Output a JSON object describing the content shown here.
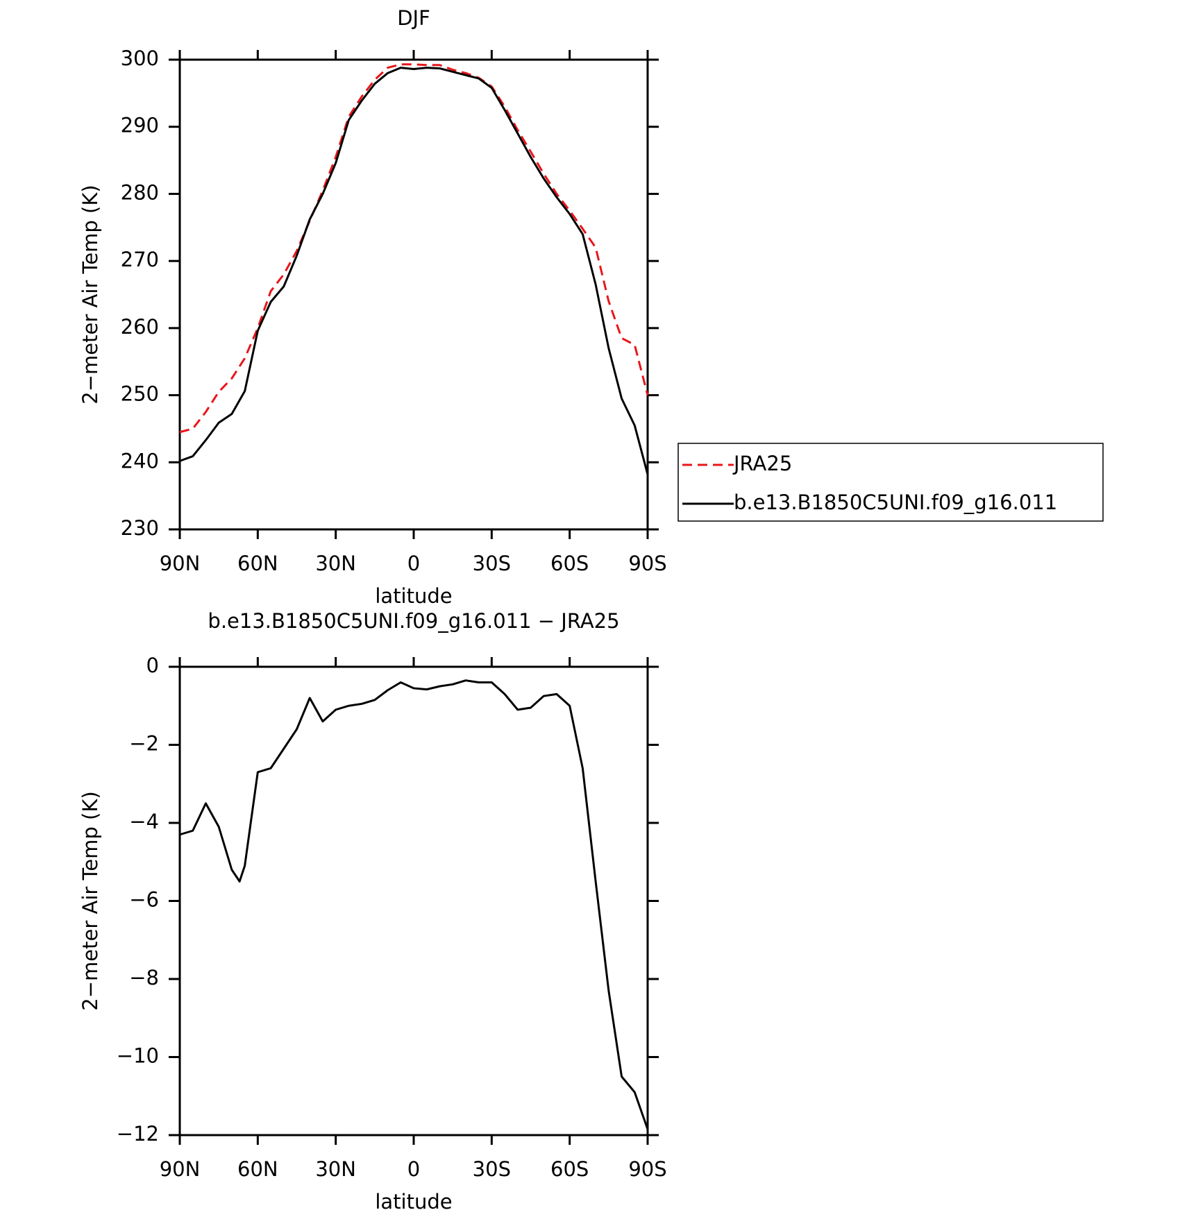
{
  "chart_data": [
    {
      "type": "line",
      "title": "DJF",
      "x_label": "latitude",
      "y_label": "2−meter Air Temp (K)",
      "x": [
        90,
        85,
        80,
        75,
        70,
        65,
        60,
        55,
        50,
        45,
        40,
        35,
        30,
        25,
        20,
        15,
        10,
        5,
        0,
        -5,
        -10,
        -15,
        -20,
        -25,
        -30,
        -35,
        -40,
        -45,
        -50,
        -55,
        -60,
        -65,
        -70,
        -75,
        -80,
        -85,
        -90
      ],
      "series": [
        {
          "name": "JRA25",
          "color": "#e8161b",
          "dash": true,
          "values": [
            244.5,
            245,
            247.5,
            250.5,
            252.5,
            255.5,
            260,
            265.5,
            268,
            271.5,
            276,
            280.5,
            285.5,
            291.5,
            294.5,
            297,
            298.8,
            299.3,
            299.3,
            299.2,
            299.2,
            298.5,
            298,
            297.3,
            296,
            293,
            289.5,
            286.3,
            283,
            280,
            277.5,
            274.8,
            272,
            264,
            258.5,
            257.5,
            250
          ]
        },
        {
          "name": "b.e13.B1850C5UNI.f09_g16.011",
          "color": "#000000",
          "dash": false,
          "values": [
            240.2,
            240.9,
            243.3,
            245.9,
            247.2,
            250.6,
            259.6,
            263.9,
            266.2,
            270.8,
            276.2,
            280,
            284.6,
            291,
            293.9,
            296.4,
            298,
            298.8,
            298.6,
            298.8,
            298.7,
            298.2,
            297.7,
            297.2,
            295.8,
            292.5,
            289,
            285.5,
            282.3,
            279.5,
            277,
            274,
            266.5,
            257,
            249.5,
            245.5,
            238.2
          ]
        }
      ],
      "xlim": [
        90,
        -90
      ],
      "xticks": [
        {
          "value": 90,
          "label": "90N"
        },
        {
          "value": 60,
          "label": "60N"
        },
        {
          "value": 30,
          "label": "30N"
        },
        0,
        {
          "value": -30,
          "label": "30S"
        },
        {
          "value": -60,
          "label": "60S"
        },
        {
          "value": -90,
          "label": "90S"
        }
      ],
      "ylim": [
        230,
        300
      ],
      "yticks": [
        230,
        240,
        250,
        260,
        270,
        280,
        290,
        300
      ],
      "legend": "right"
    },
    {
      "type": "line",
      "title": "b.e13.B1850C5UNI.f09_g16.011 − JRA25",
      "x_label": "latitude",
      "y_label": "2−meter Air Temp (K)",
      "x": [
        90,
        85,
        80,
        75,
        70,
        67,
        65,
        60,
        55,
        50,
        45,
        40,
        35,
        30,
        25,
        20,
        15,
        10,
        5,
        0,
        -5,
        -10,
        -15,
        -20,
        -25,
        -30,
        -35,
        -40,
        -45,
        -50,
        -55,
        -60,
        -65,
        -70,
        -75,
        -80,
        -85,
        -90
      ],
      "color": "#000000",
      "values": [
        -4.3,
        -4.2,
        -3.5,
        -4.1,
        -5.2,
        -5.5,
        -5.1,
        -2.7,
        -2.6,
        -2.1,
        -1.6,
        -0.8,
        -1.4,
        -1.1,
        -1,
        -0.95,
        -0.85,
        -0.6,
        -0.4,
        -0.55,
        -0.58,
        -0.5,
        -0.45,
        -0.35,
        -0.4,
        -0.4,
        -0.7,
        -1.1,
        -1.05,
        -0.75,
        -0.7,
        -1,
        -2.6,
        -5.5,
        -8.3,
        -10.5,
        -10.9,
        -11.85
      ],
      "xlim": [
        90,
        -90
      ],
      "xticks": [
        {
          "value": 90,
          "label": "90N"
        },
        {
          "value": 60,
          "label": "60N"
        },
        {
          "value": 30,
          "label": "30N"
        },
        0,
        {
          "value": -30,
          "label": "30S"
        },
        {
          "value": -60,
          "label": "60S"
        },
        {
          "value": -90,
          "label": "90S"
        }
      ],
      "ylim": [
        -12,
        0
      ],
      "yticks": [
        {
          "value": -12,
          "label": "−12"
        },
        {
          "value": -10,
          "label": "−10"
        },
        {
          "value": -8,
          "label": "−8"
        },
        {
          "value": -6,
          "label": "−6"
        },
        {
          "value": -4,
          "label": "−4"
        },
        {
          "value": -2,
          "label": "−2"
        },
        0
      ]
    }
  ]
}
